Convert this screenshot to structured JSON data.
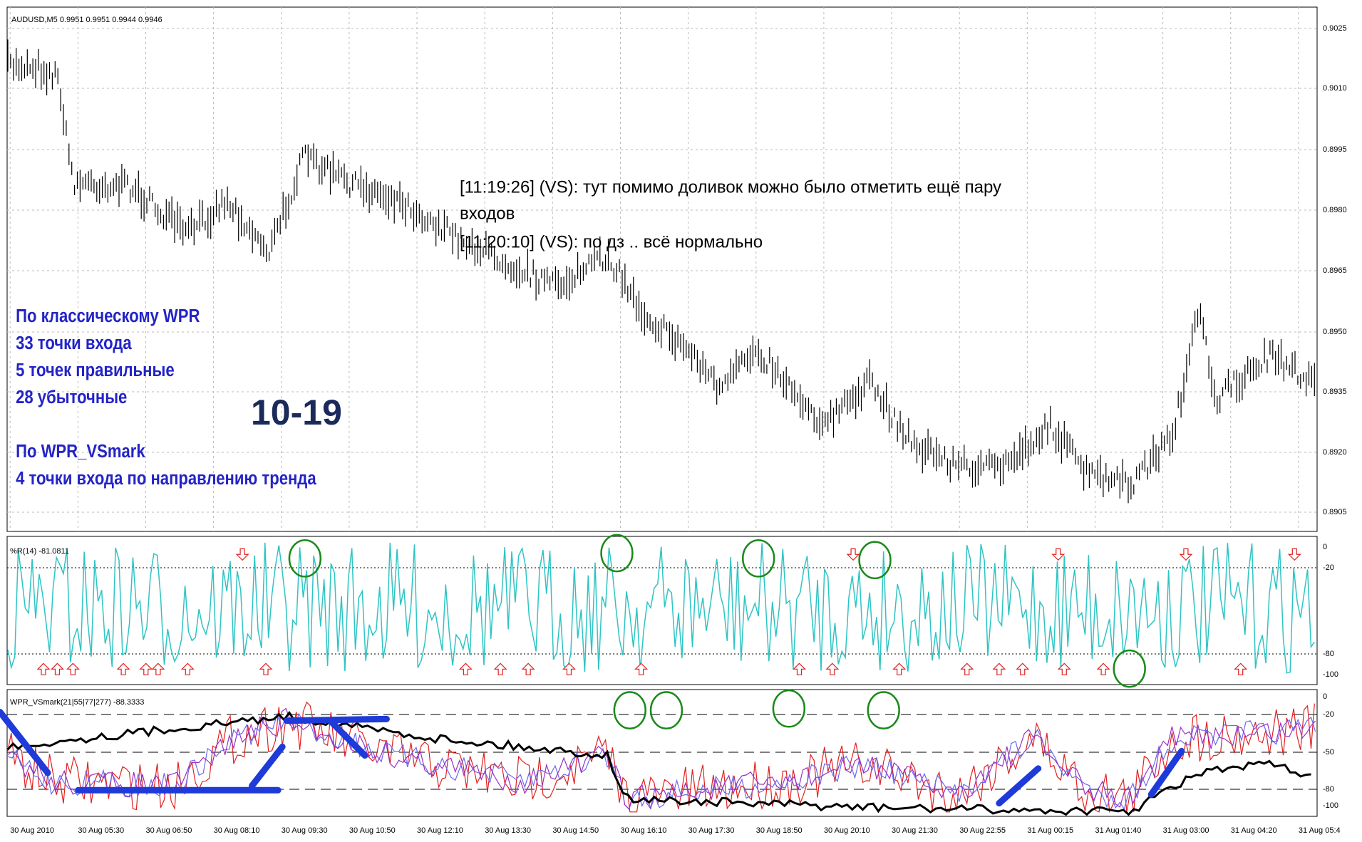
{
  "header": {
    "symbol_line": "AUDUSD,M5 0.9951 0.9951 0.9944 0.9946"
  },
  "chat": {
    "lines": [
      "[11:19:26] (VS): тут помимо доливок можно было отметить ещё пару",
      "входов",
      "[11:20:10] (VS): по дз .. всё нормально"
    ]
  },
  "annotation": {
    "lines": [
      "По классическому WPR",
      "33 точки входа",
      "5 точек правильные",
      "28 убыточные",
      "",
      "По WPR_VSmark",
      "4 точки входа по направлению тренда"
    ],
    "big_label": "10-19"
  },
  "price_axis": {
    "labels": [
      "0.9025",
      "0.9010",
      "0.8995",
      "0.8980",
      "0.8965",
      "0.8950",
      "0.8935",
      "0.8920",
      "0.8905"
    ]
  },
  "wpr_panel": {
    "title": "%R(14) -81.0811",
    "labels": [
      "0",
      "-20",
      "-80",
      "-100"
    ]
  },
  "vsmark_panel": {
    "title": "WPR_VSmark(21|55|77|277) -88.3333",
    "labels": [
      "0",
      "-20",
      "-50",
      "-80",
      "-100"
    ]
  },
  "time_axis": {
    "labels": [
      "30 Aug 2010",
      "30 Aug 05:30",
      "30 Aug 06:50",
      "30 Aug 08:10",
      "30 Aug 09:30",
      "30 Aug 10:50",
      "30 Aug 12:10",
      "30 Aug 13:30",
      "30 Aug 14:50",
      "30 Aug 16:10",
      "30 Aug 17:30",
      "30 Aug 18:50",
      "30 Aug 20:10",
      "30 Aug 21:30",
      "30 Aug 22:55",
      "31 Aug 00:15",
      "31 Aug 01:40",
      "31 Aug 03:00",
      "31 Aug 04:20",
      "31 Aug 05:4"
    ]
  }
}
